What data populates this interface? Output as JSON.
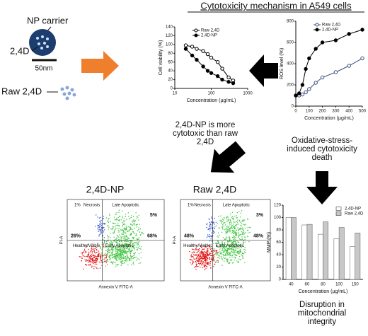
{
  "header": {
    "title": "Cytotoxicity mechanism in A549 cells"
  },
  "carrier": {
    "np_label": "NP carrier",
    "drug_label": "2,4D",
    "scale": "50nm",
    "raw_label": "Raw 2,4D"
  },
  "notes": {
    "cytotoxic": [
      "2,4D-NP is more",
      "cytotoxic than raw",
      "2,4D"
    ],
    "oxidative": [
      "Oxidative-stress-",
      "induced cytotoxicity",
      "death"
    ],
    "mmp": [
      "Disruption in",
      "mitochondrial",
      "integrity"
    ]
  },
  "chart_data": [
    {
      "type": "line",
      "x_label": "Concentration (µg/mL)",
      "y_label": "Cell viability (%)",
      "xlog": true,
      "xlim": [
        10,
        1000
      ],
      "xticks": [
        10,
        100,
        1000
      ],
      "ylim": [
        0,
        140
      ],
      "yticks": [
        0,
        20,
        40,
        60,
        80,
        100,
        120,
        140
      ],
      "x": [
        20,
        30,
        40,
        60,
        80,
        100,
        150,
        200,
        300,
        400
      ],
      "series": [
        {
          "name": "Raw 2,4D",
          "color": "#000000",
          "marker_fill": "#ffffff",
          "values": [
            98,
            95,
            90,
            85,
            78,
            70,
            60,
            45,
            25,
            18
          ]
        },
        {
          "name": "2,4D-NP",
          "color": "#000000",
          "marker_fill": "#000000",
          "values": [
            90,
            75,
            65,
            50,
            40,
            35,
            28,
            20,
            15,
            12
          ]
        }
      ]
    },
    {
      "type": "line",
      "x_label": "Concentration (µg/mL)",
      "y_label": "ROS level (%)",
      "xlog": false,
      "xlim": [
        0,
        500
      ],
      "xticks": [
        0,
        100,
        200,
        300,
        400,
        500
      ],
      "ylim": [
        0,
        800
      ],
      "yticks": [
        0,
        200,
        400,
        600,
        800
      ],
      "x": [
        0,
        25,
        50,
        75,
        100,
        150,
        200,
        300,
        400,
        500
      ],
      "series": [
        {
          "name": "Raw 2,4D",
          "color": "#3a4a7a",
          "marker_fill": "#ffffff",
          "values": [
            100,
            100,
            110,
            130,
            160,
            220,
            270,
            320,
            380,
            450
          ]
        },
        {
          "name": "2,4D-NP",
          "color": "#000000",
          "marker_fill": "#000000",
          "values": [
            100,
            120,
            200,
            350,
            450,
            540,
            600,
            620,
            680,
            720
          ]
        }
      ]
    },
    {
      "type": "bar",
      "x_label": "Concentration (µg/mL)",
      "y_label": "MMP (%)",
      "ylim": [
        0,
        120
      ],
      "yticks": [
        0,
        20,
        40,
        60,
        80,
        100,
        120
      ],
      "categories": [
        "40",
        "60",
        "80",
        "100",
        "150"
      ],
      "series": [
        {
          "name": "2,4D-NP",
          "color": "#ffffff",
          "values": [
            100,
            88,
            73,
            66,
            53
          ]
        },
        {
          "name": "Raw 2,4D",
          "color": "#c8c8c8",
          "values": [
            100,
            89,
            93,
            84,
            75
          ]
        }
      ]
    }
  ],
  "flow_plots": [
    {
      "title": "2,4D-NP",
      "x_label": "Annexin V FITC-A",
      "y_label": "PI-A",
      "quadrants": [
        {
          "name": "Necrosis",
          "pct": "1%"
        },
        {
          "name": "Late Apoptotic",
          "pct": "5%"
        },
        {
          "name": "Healthy/Viable",
          "pct": "26%"
        },
        {
          "name": "Early Apoptotic",
          "pct": "68%"
        }
      ]
    },
    {
      "title": "Raw 2,4D",
      "x_label": "Annexin V FITC-A",
      "y_label": "PI-A",
      "quadrants": [
        {
          "name": "Necrosis",
          "pct": "1%"
        },
        {
          "name": "Late Apoptotic",
          "pct": "3%"
        },
        {
          "name": "Healthy/Viable",
          "pct": "48%"
        },
        {
          "name": "Early Apoptotic",
          "pct": "48%"
        }
      ]
    }
  ]
}
